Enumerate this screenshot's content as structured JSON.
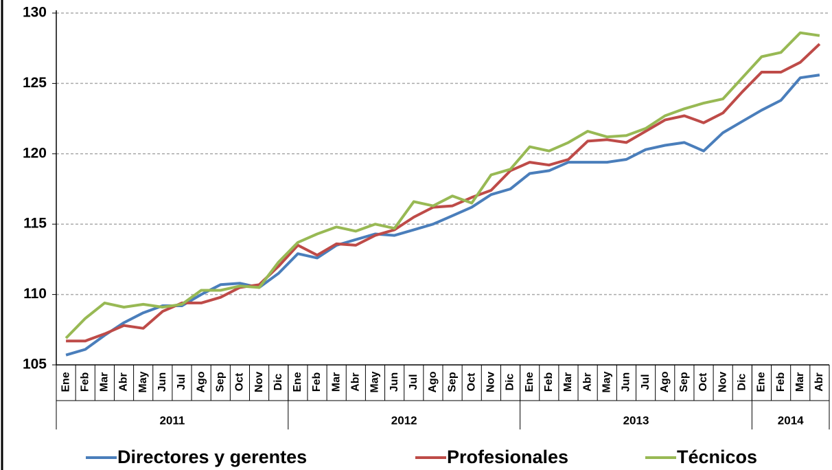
{
  "chart_data": {
    "type": "line",
    "groups": [
      {
        "label": "2011",
        "categories": [
          "Ene",
          "Feb",
          "Mar",
          "Abr",
          "May",
          "Jun",
          "Jul",
          "Ago",
          "Sep",
          "Oct",
          "Nov",
          "Dic"
        ]
      },
      {
        "label": "2012",
        "categories": [
          "Ene",
          "Feb",
          "Mar",
          "Abr",
          "May",
          "Jun",
          "Jul",
          "Ago",
          "Sep",
          "Oct",
          "Nov",
          "Dic"
        ]
      },
      {
        "label": "2013",
        "categories": [
          "Ene",
          "Feb",
          "Mar",
          "Abr",
          "May",
          "Jun",
          "Jul",
          "Ago",
          "Sep",
          "Oct",
          "Nov",
          "Dic"
        ]
      },
      {
        "label": "2014",
        "categories": [
          "Ene",
          "Feb",
          "Mar",
          "Abr"
        ]
      }
    ],
    "series": [
      {
        "name": "Directores y gerentes",
        "color": "#4a7ebb",
        "values": [
          105.7,
          106.1,
          107.1,
          108.0,
          108.7,
          109.2,
          109.2,
          110.0,
          110.7,
          110.8,
          110.5,
          111.5,
          112.9,
          112.6,
          113.5,
          113.9,
          114.3,
          114.2,
          114.6,
          115.0,
          115.6,
          116.2,
          117.1,
          117.5,
          118.6,
          118.8,
          119.4,
          119.4,
          119.4,
          119.6,
          120.3,
          120.6,
          120.8,
          120.2,
          121.5,
          122.3,
          123.1,
          123.8,
          125.4,
          125.6
        ]
      },
      {
        "name": "Profesionales",
        "color": "#be4b48",
        "values": [
          106.7,
          106.7,
          107.2,
          107.8,
          107.6,
          108.8,
          109.4,
          109.4,
          109.8,
          110.5,
          110.7,
          112.0,
          113.5,
          112.8,
          113.6,
          113.5,
          114.2,
          114.6,
          115.5,
          116.2,
          116.3,
          116.9,
          117.4,
          118.8,
          119.4,
          119.2,
          119.6,
          120.9,
          121.0,
          120.8,
          121.6,
          122.4,
          122.7,
          122.2,
          122.9,
          124.4,
          125.8,
          125.8,
          126.5,
          127.8
        ]
      },
      {
        "name": "Técnicos",
        "color": "#98b954",
        "values": [
          106.9,
          108.3,
          109.4,
          109.1,
          109.3,
          109.1,
          109.3,
          110.3,
          110.3,
          110.6,
          110.5,
          112.3,
          113.7,
          114.3,
          114.8,
          114.5,
          115.0,
          114.7,
          116.6,
          116.3,
          117.0,
          116.5,
          118.5,
          118.9,
          120.5,
          120.2,
          120.8,
          121.6,
          121.2,
          121.3,
          121.8,
          122.7,
          123.2,
          123.6,
          123.9,
          125.4,
          126.9,
          127.2,
          128.6,
          128.4
        ]
      }
    ],
    "ylim": [
      105,
      130
    ],
    "yticks": [
      105,
      110,
      115,
      120,
      125,
      130
    ],
    "grid": true,
    "legend": "bottom"
  }
}
